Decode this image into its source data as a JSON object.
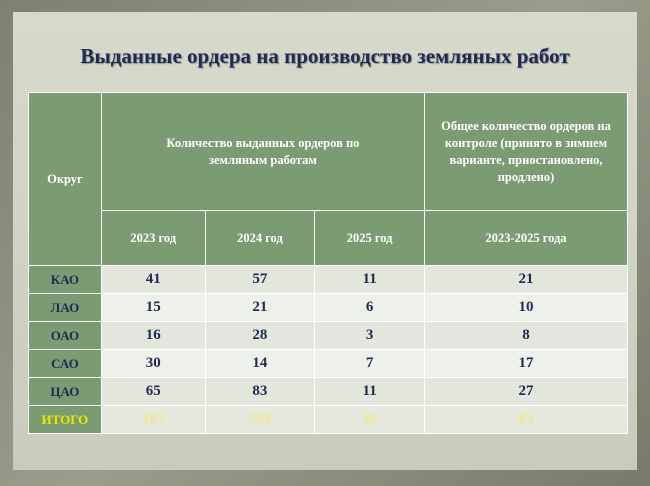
{
  "title": "Выданные ордера на производство земляных работ",
  "table": {
    "header": {
      "district": "Округ",
      "issued": "Количество выданных ордеров по земляным работам",
      "control": "Общее количество ордеров на контроле (принято в зимнем варианте, приостановлено, продлено)",
      "years": [
        "2023 год",
        "2024 год",
        "2025 год",
        "2023-2025 года"
      ]
    },
    "rows": [
      [
        "КАО",
        41,
        57,
        11,
        21
      ],
      [
        "ЛАО",
        15,
        21,
        6,
        10
      ],
      [
        "ОАО",
        16,
        28,
        3,
        8
      ],
      [
        "САО",
        30,
        14,
        7,
        17
      ],
      [
        "ЦАО",
        65,
        83,
        11,
        27
      ],
      [
        "ИТОГО",
        167,
        203,
        38,
        83
      ]
    ]
  }
}
